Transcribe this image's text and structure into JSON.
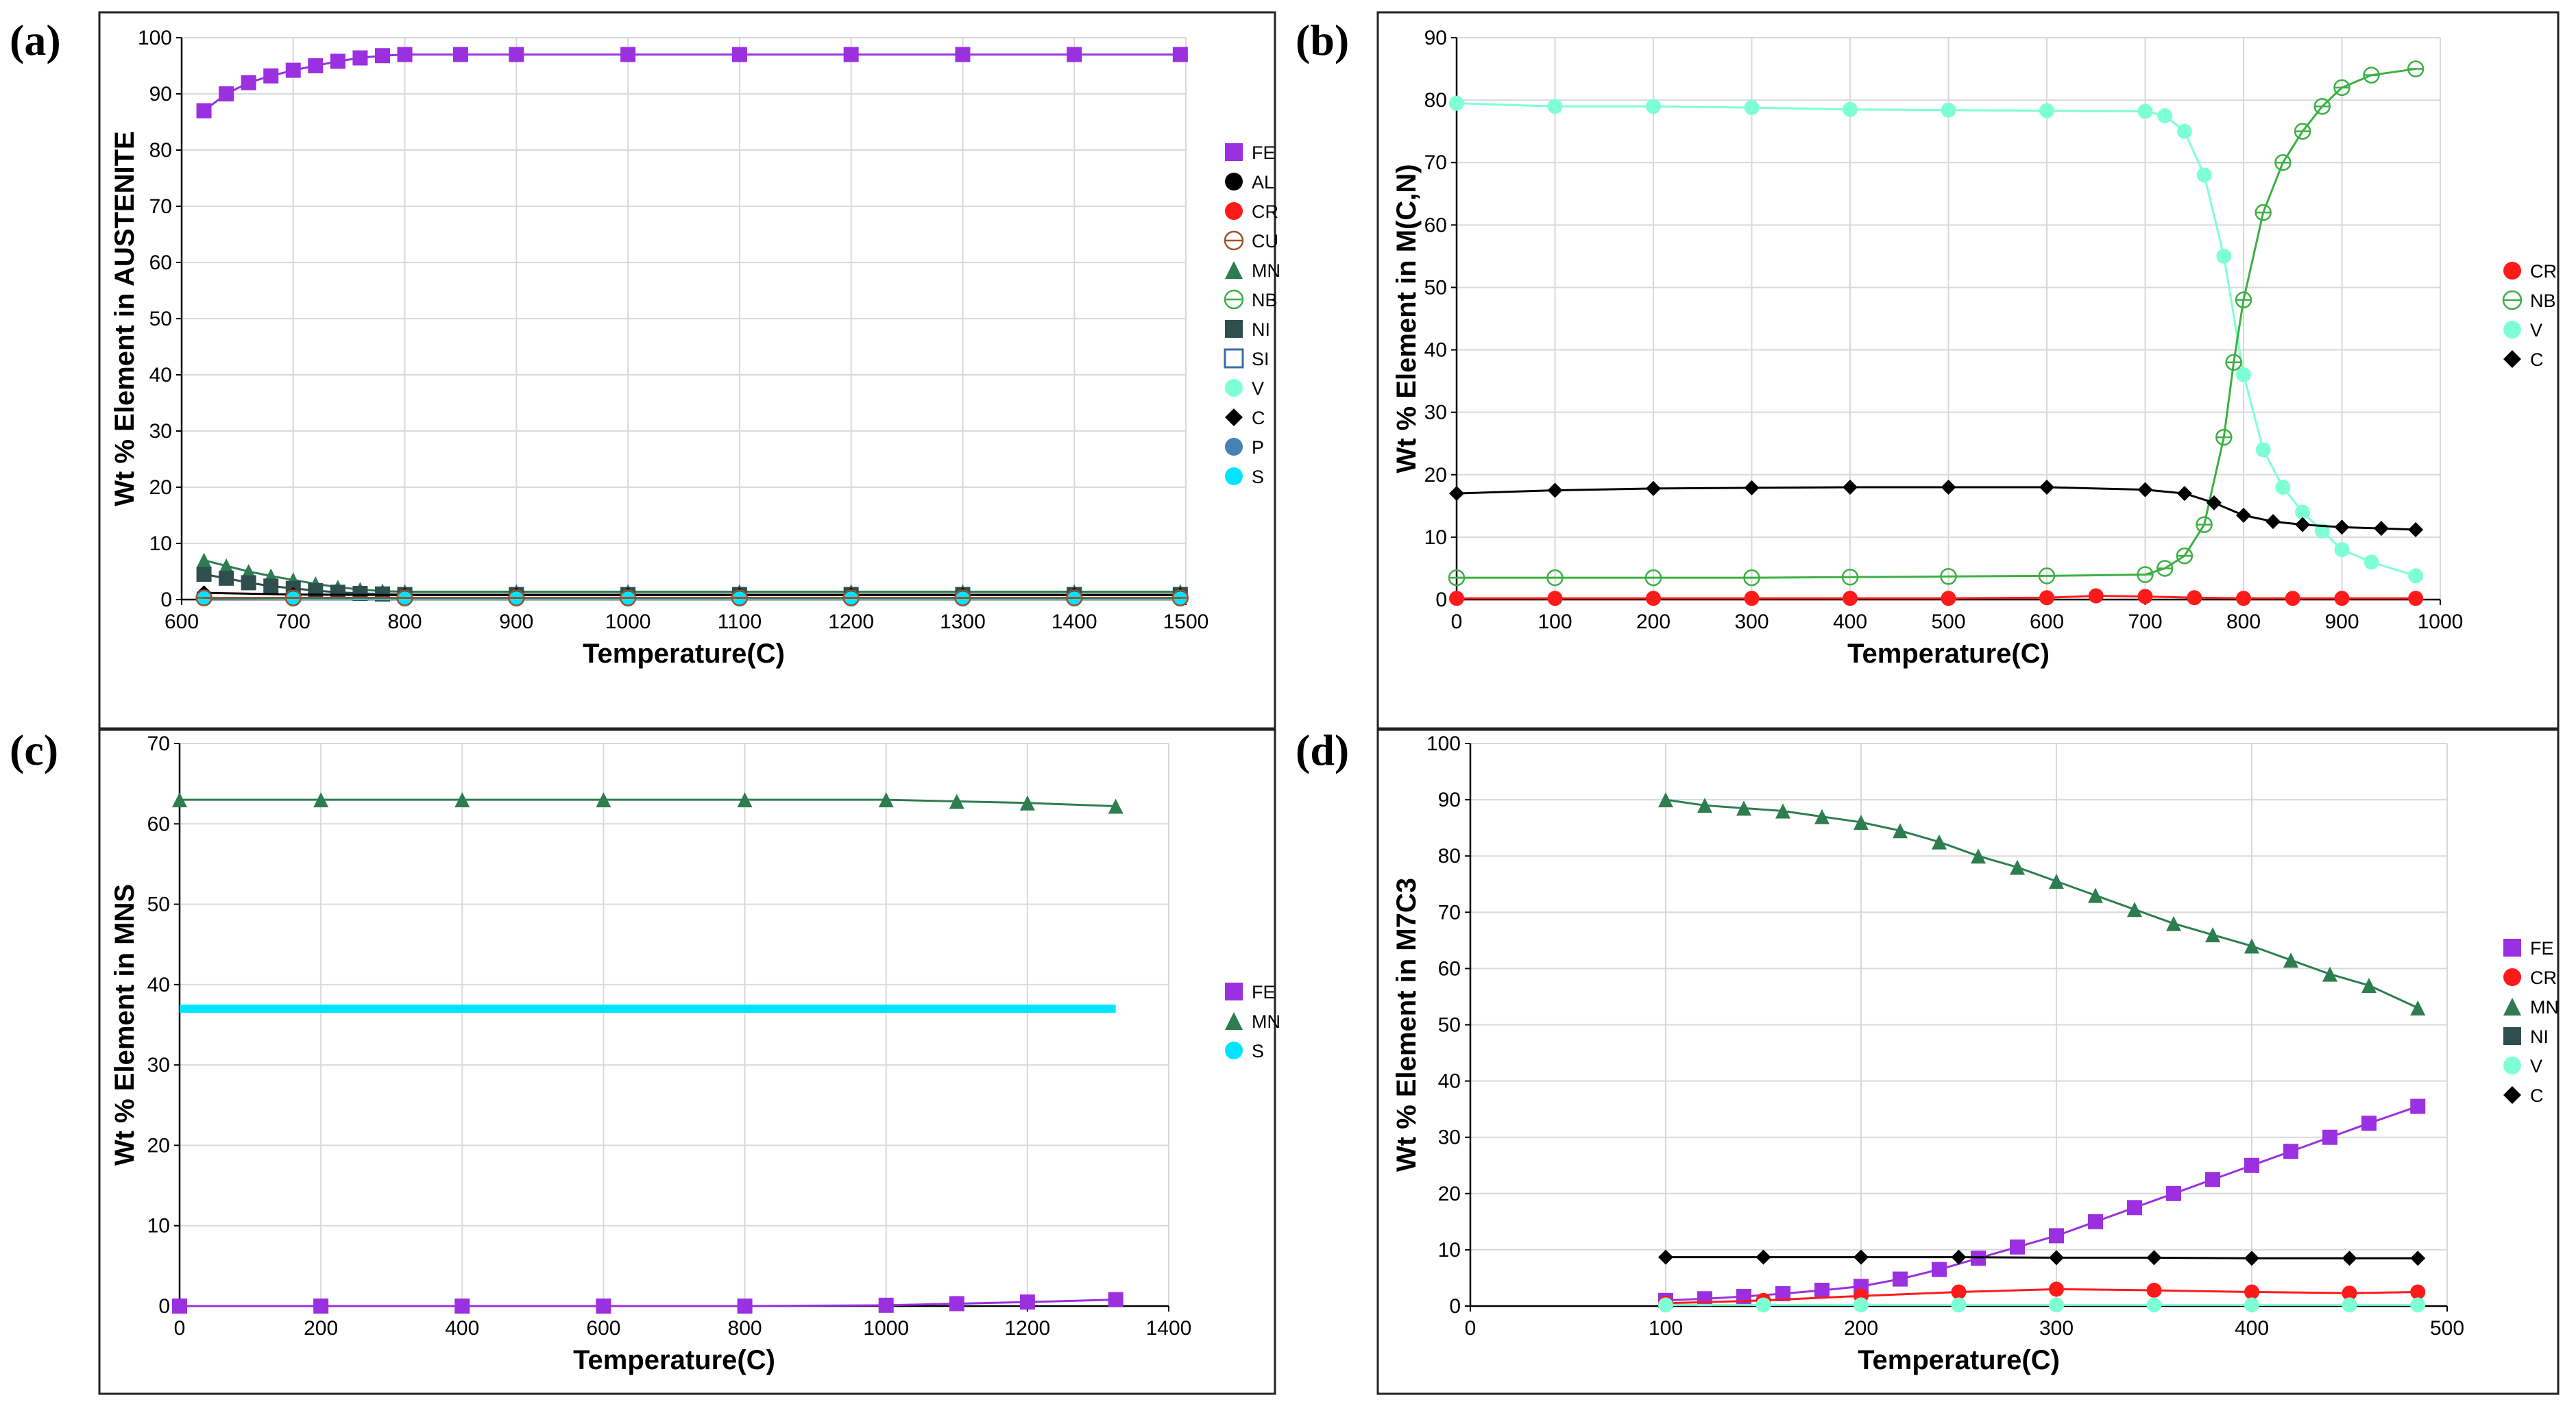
{
  "chart_data": [
    {
      "panel": "(a)",
      "type": "scatter",
      "ylabel": "Wt %  Element in AUSTENITE",
      "xlabel": "Temperature(C)",
      "xlim": [
        600,
        1500
      ],
      "ylim": [
        0,
        100
      ],
      "xticks": [
        600,
        700,
        800,
        900,
        1000,
        1100,
        1200,
        1300,
        1400,
        1500
      ],
      "yticks": [
        0,
        10,
        20,
        30,
        40,
        50,
        60,
        70,
        80,
        90,
        100
      ],
      "grid": true,
      "legend_position": "right",
      "legend": [
        "FE",
        "AL",
        "CR",
        "CU",
        "MN",
        "NB",
        "NI",
        "SI",
        "V",
        "C",
        "P",
        "S"
      ],
      "series": [
        {
          "name": "FE",
          "marker": "square",
          "color": "#9b30e0",
          "x": [
            620,
            640,
            660,
            680,
            700,
            720,
            740,
            760,
            780,
            800,
            850,
            900,
            1000,
            1100,
            1200,
            1300,
            1400,
            1495
          ],
          "y": [
            87,
            90,
            92,
            93.2,
            94.2,
            95,
            95.8,
            96.4,
            96.8,
            97,
            97,
            97,
            97,
            97,
            97,
            97,
            97,
            97
          ]
        },
        {
          "name": "MN",
          "marker": "triangle",
          "color": "#2e7d4f",
          "x": [
            620,
            640,
            660,
            680,
            700,
            720,
            740,
            760,
            780,
            800,
            900,
            1000,
            1100,
            1200,
            1300,
            1400,
            1495
          ],
          "y": [
            7,
            6,
            5,
            4.2,
            3.5,
            2.8,
            2.2,
            1.8,
            1.5,
            1.4,
            1.4,
            1.4,
            1.4,
            1.4,
            1.4,
            1.4,
            1.4
          ]
        },
        {
          "name": "NI",
          "marker": "square",
          "color": "#2f4f4f",
          "x": [
            620,
            640,
            660,
            680,
            700,
            720,
            740,
            760,
            780,
            800,
            900,
            1000,
            1100,
            1200,
            1300,
            1400,
            1495
          ],
          "y": [
            4.5,
            3.8,
            3,
            2.4,
            2,
            1.6,
            1.3,
            1.1,
            1,
            0.9,
            0.9,
            0.9,
            0.9,
            0.9,
            0.9,
            0.9,
            0.9
          ]
        },
        {
          "name": "C",
          "marker": "diamond",
          "color": "#000000",
          "x": [
            620,
            700,
            800,
            900,
            1000,
            1100,
            1200,
            1300,
            1400,
            1495
          ],
          "y": [
            1.2,
            0.9,
            0.8,
            0.8,
            0.8,
            0.8,
            0.8,
            0.8,
            0.8,
            0.8
          ]
        },
        {
          "name": "S",
          "marker": "circle",
          "color": "#00e5ff",
          "x": [
            620,
            700,
            800,
            900,
            1000,
            1100,
            1200,
            1300,
            1400,
            1495
          ],
          "y": [
            0.2,
            0.1,
            0.1,
            0.1,
            0.1,
            0.1,
            0.1,
            0.1,
            0.1,
            0.1
          ]
        },
        {
          "name": "CU",
          "marker": "crosscircle",
          "color": "#a0522d",
          "x": [
            620,
            700,
            800,
            900,
            1000,
            1100,
            1200,
            1300,
            1400,
            1495
          ],
          "y": [
            0.3,
            0.3,
            0.3,
            0.3,
            0.3,
            0.3,
            0.3,
            0.3,
            0.3,
            0.3
          ]
        }
      ],
      "legend_styles": [
        {
          "name": "FE",
          "marker": "square",
          "color": "#9b30e0"
        },
        {
          "name": "AL",
          "marker": "circle",
          "color": "#000000"
        },
        {
          "name": "CR",
          "marker": "circle",
          "color": "#ff1a1a"
        },
        {
          "name": "CU",
          "marker": "crosscircle",
          "color": "#a0522d"
        },
        {
          "name": "MN",
          "marker": "triangle",
          "color": "#2e7d4f"
        },
        {
          "name": "NB",
          "marker": "crosscircle",
          "color": "#3cb043"
        },
        {
          "name": "NI",
          "marker": "square",
          "color": "#2f4f4f"
        },
        {
          "name": "SI",
          "marker": "opensquare",
          "color": "#3b6ea5"
        },
        {
          "name": "V",
          "marker": "circle",
          "color": "#7fffd4"
        },
        {
          "name": "C",
          "marker": "diamond",
          "color": "#000000"
        },
        {
          "name": "P",
          "marker": "circle",
          "color": "#4682b4"
        },
        {
          "name": "S",
          "marker": "circle",
          "color": "#00e5ff"
        }
      ]
    },
    {
      "panel": "(b)",
      "type": "scatter",
      "ylabel": "Wt %  Element in M(C,N)",
      "xlabel": "Temperature(C)",
      "xlim": [
        0,
        1000
      ],
      "ylim": [
        0,
        90
      ],
      "xticks": [
        0,
        100,
        200,
        300,
        400,
        500,
        600,
        700,
        800,
        900,
        1000
      ],
      "yticks": [
        0,
        10,
        20,
        30,
        40,
        50,
        60,
        70,
        80,
        90
      ],
      "grid": true,
      "legend_position": "right",
      "legend": [
        "CR",
        "NB",
        "V",
        "C"
      ],
      "series": [
        {
          "name": "V",
          "marker": "circle",
          "color": "#7fffd4",
          "x": [
            0,
            100,
            200,
            300,
            400,
            500,
            600,
            700,
            720,
            740,
            760,
            780,
            800,
            820,
            840,
            860,
            880,
            900,
            930,
            975
          ],
          "y": [
            79.5,
            79,
            79,
            78.8,
            78.5,
            78.4,
            78.3,
            78.2,
            77.5,
            75,
            68,
            55,
            36,
            24,
            18,
            14,
            11,
            8,
            6,
            3.8
          ]
        },
        {
          "name": "NB",
          "marker": "crosscircle",
          "color": "#3cb043",
          "x": [
            0,
            100,
            200,
            300,
            400,
            500,
            600,
            700,
            720,
            740,
            760,
            780,
            790,
            800,
            820,
            840,
            860,
            880,
            900,
            930,
            975
          ],
          "y": [
            3.5,
            3.5,
            3.5,
            3.5,
            3.6,
            3.7,
            3.8,
            4,
            5,
            7,
            12,
            26,
            38,
            48,
            62,
            70,
            75,
            79,
            82,
            84,
            85
          ]
        },
        {
          "name": "C",
          "marker": "diamond",
          "color": "#000000",
          "x": [
            0,
            100,
            200,
            300,
            400,
            500,
            600,
            700,
            740,
            770,
            800,
            830,
            860,
            900,
            940,
            975
          ],
          "y": [
            17,
            17.5,
            17.8,
            17.9,
            18,
            18,
            18,
            17.6,
            17,
            15.5,
            13.5,
            12.5,
            12,
            11.6,
            11.4,
            11.2
          ]
        },
        {
          "name": "CR",
          "marker": "circle",
          "color": "#ff1a1a",
          "x": [
            0,
            100,
            200,
            300,
            400,
            500,
            600,
            650,
            700,
            750,
            800,
            850,
            900,
            975
          ],
          "y": [
            0.2,
            0.2,
            0.2,
            0.2,
            0.2,
            0.2,
            0.3,
            0.6,
            0.5,
            0.3,
            0.2,
            0.2,
            0.2,
            0.2
          ]
        }
      ],
      "legend_styles": [
        {
          "name": "CR",
          "marker": "circle",
          "color": "#ff1a1a"
        },
        {
          "name": "NB",
          "marker": "crosscircle",
          "color": "#3cb043"
        },
        {
          "name": "V",
          "marker": "circle",
          "color": "#7fffd4"
        },
        {
          "name": "C",
          "marker": "diamond",
          "color": "#000000"
        }
      ]
    },
    {
      "panel": "(c)",
      "type": "scatter",
      "ylabel": "Wt %  Element in MNS",
      "xlabel": "Temperature(C)",
      "xlim": [
        0,
        1400
      ],
      "ylim": [
        0,
        70
      ],
      "xticks": [
        0,
        200,
        400,
        600,
        800,
        1000,
        1200,
        1400
      ],
      "yticks": [
        0,
        10,
        20,
        30,
        40,
        50,
        60,
        70
      ],
      "grid": true,
      "legend_position": "right",
      "legend": [
        "FE",
        "MN",
        "S"
      ],
      "series": [
        {
          "name": "MN",
          "marker": "triangle",
          "color": "#2e7d4f",
          "x": [
            0,
            200,
            400,
            600,
            800,
            1000,
            1100,
            1200,
            1325
          ],
          "y": [
            63,
            63,
            63,
            63,
            63,
            63,
            62.8,
            62.6,
            62.2
          ]
        },
        {
          "name": "S",
          "marker": "line",
          "color": "#00e5ff",
          "x": [
            0,
            1325
          ],
          "y": [
            37,
            37
          ]
        },
        {
          "name": "FE",
          "marker": "square",
          "color": "#9b30e0",
          "x": [
            0,
            200,
            400,
            600,
            800,
            1000,
            1100,
            1200,
            1325
          ],
          "y": [
            0,
            0,
            0,
            0,
            0,
            0.1,
            0.3,
            0.5,
            0.8
          ]
        }
      ],
      "legend_styles": [
        {
          "name": "FE",
          "marker": "square",
          "color": "#9b30e0"
        },
        {
          "name": "MN",
          "marker": "triangle",
          "color": "#2e7d4f"
        },
        {
          "name": "S",
          "marker": "circle",
          "color": "#00e5ff"
        }
      ]
    },
    {
      "panel": "(d)",
      "type": "scatter",
      "ylabel": "Wt %  Element in M7C3",
      "xlabel": "Temperature(C)",
      "xlim": [
        0,
        500
      ],
      "ylim": [
        0,
        100
      ],
      "xticks": [
        0,
        100,
        200,
        300,
        400,
        500
      ],
      "yticks": [
        0,
        10,
        20,
        30,
        40,
        50,
        60,
        70,
        80,
        90,
        100
      ],
      "grid": true,
      "legend_position": "right",
      "legend": [
        "FE",
        "CR",
        "MN",
        "NI",
        "V",
        "C"
      ],
      "series": [
        {
          "name": "MN",
          "marker": "triangle",
          "color": "#2e7d4f",
          "x": [
            100,
            120,
            140,
            160,
            180,
            200,
            220,
            240,
            260,
            280,
            300,
            320,
            340,
            360,
            380,
            400,
            420,
            440,
            460,
            485
          ],
          "y": [
            90,
            89,
            88.5,
            88,
            87,
            86,
            84.5,
            82.5,
            80,
            78,
            75.5,
            73,
            70.5,
            68,
            66,
            64,
            61.5,
            59,
            57,
            53
          ]
        },
        {
          "name": "FE",
          "marker": "square",
          "color": "#9b30e0",
          "x": [
            100,
            120,
            140,
            160,
            180,
            200,
            220,
            240,
            260,
            280,
            300,
            320,
            340,
            360,
            380,
            400,
            420,
            440,
            460,
            485
          ],
          "y": [
            1,
            1.3,
            1.7,
            2.2,
            2.8,
            3.5,
            4.8,
            6.5,
            8.5,
            10.5,
            12.5,
            15,
            17.5,
            20,
            22.5,
            25,
            27.5,
            30,
            32.5,
            35.5
          ]
        },
        {
          "name": "C",
          "marker": "diamond",
          "color": "#000000",
          "x": [
            100,
            150,
            200,
            250,
            300,
            350,
            400,
            450,
            485
          ],
          "y": [
            8.7,
            8.7,
            8.7,
            8.7,
            8.6,
            8.6,
            8.5,
            8.5,
            8.5
          ]
        },
        {
          "name": "CR",
          "marker": "circle",
          "color": "#ff1a1a",
          "x": [
            100,
            150,
            200,
            250,
            300,
            350,
            400,
            450,
            485
          ],
          "y": [
            0.5,
            1,
            1.8,
            2.5,
            3,
            2.8,
            2.5,
            2.3,
            2.5
          ]
        },
        {
          "name": "V",
          "marker": "circle",
          "color": "#7fffd4",
          "x": [
            100,
            150,
            200,
            250,
            300,
            350,
            400,
            450,
            485
          ],
          "y": [
            0.2,
            0.2,
            0.2,
            0.2,
            0.2,
            0.2,
            0.2,
            0.2,
            0.2
          ]
        }
      ],
      "legend_styles": [
        {
          "name": "FE",
          "marker": "square",
          "color": "#9b30e0"
        },
        {
          "name": "CR",
          "marker": "circle",
          "color": "#ff1a1a"
        },
        {
          "name": "MN",
          "marker": "triangle",
          "color": "#2e7d4f"
        },
        {
          "name": "NI",
          "marker": "square",
          "color": "#2f4f4f"
        },
        {
          "name": "V",
          "marker": "circle",
          "color": "#7fffd4"
        },
        {
          "name": "C",
          "marker": "diamond",
          "color": "#000000"
        }
      ]
    }
  ]
}
